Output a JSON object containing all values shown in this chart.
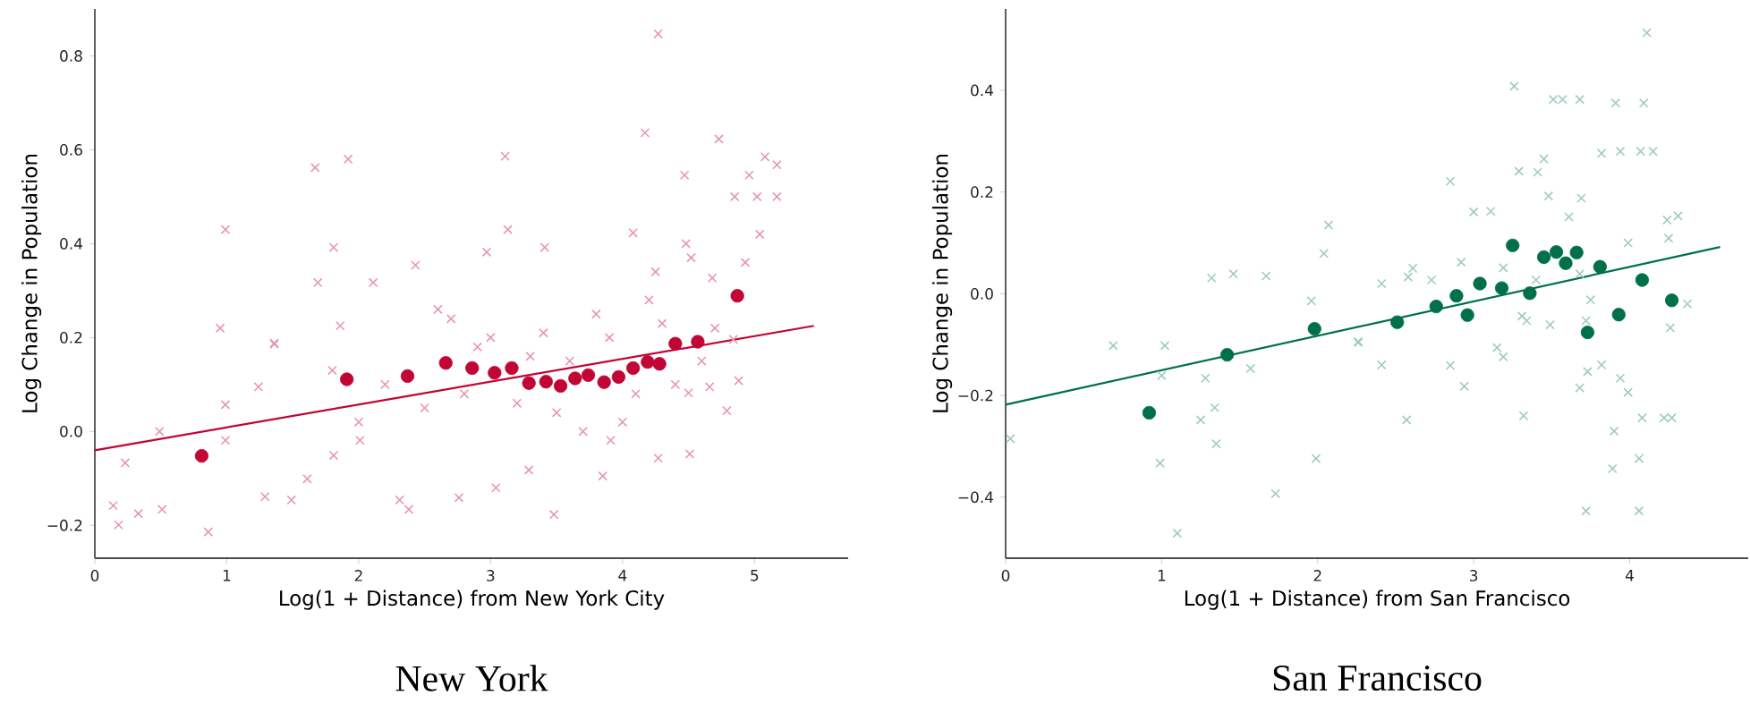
{
  "chart_data": [
    {
      "type": "scatter",
      "title": "New York",
      "xlabel": "Log(1 + Distance) from New York City",
      "ylabel": "Log Change in Population",
      "xlim": [
        0,
        5.71
      ],
      "ylim": [
        -0.27,
        0.9
      ],
      "xticks": [
        0,
        1,
        2,
        3,
        4,
        5
      ],
      "yticks": [
        {
          "value": -0.2,
          "label": "−0.2"
        },
        {
          "value": 0,
          "label": "0.0"
        },
        {
          "value": 0.2,
          "label": "0.2"
        },
        {
          "value": 0.4,
          "label": "0.4"
        },
        {
          "value": 0.6,
          "label": "0.6"
        },
        {
          "value": 0.8,
          "label": "0.8"
        }
      ],
      "series": [
        {
          "marker": "cross",
          "color": "#e897ad",
          "x": [
            4.27,
            4.17,
            1.67,
            1.92,
            3.11,
            4.73,
            4.47,
            5.08,
            5.17,
            4.85,
            5.17,
            5.02,
            4.96,
            0.99,
            1.81,
            3.13,
            3.41,
            4.08,
            4.48,
            5.04,
            4.93,
            1.69,
            2.11,
            4.25,
            4.68,
            0.95,
            1.36,
            1.86,
            2.43,
            2.97,
            4.52,
            0.14,
            0.18,
            0.33,
            0.23,
            0.49,
            0.51,
            0.86,
            0.99,
            0.99,
            1.36,
            1.24,
            1.29,
            1.49,
            1.61,
            1.81,
            2.01,
            2.31,
            2.38,
            2.76,
            3.04,
            3.29,
            3.48,
            3.85,
            3.91,
            4.27,
            4.51,
            4.79,
            4.88,
            4.66,
            4.84,
            4.5,
            2.7,
            2.9,
            3.2,
            3.5,
            3.8,
            4.0,
            4.3,
            4.6,
            2.2,
            2.5,
            3.0,
            3.6,
            4.1,
            4.4,
            3.3,
            2.8,
            3.9,
            4.7,
            1.8,
            2.0,
            3.4,
            4.2,
            3.7,
            2.6
          ],
          "values": [
            0.847,
            0.636,
            0.562,
            0.58,
            0.586,
            0.623,
            0.546,
            0.585,
            0.568,
            0.5,
            0.5,
            0.5,
            0.546,
            0.43,
            0.392,
            0.43,
            0.392,
            0.423,
            0.4,
            0.42,
            0.36,
            0.317,
            0.317,
            0.34,
            0.327,
            0.22,
            0.188,
            0.225,
            0.354,
            0.382,
            0.37,
            -0.158,
            -0.199,
            -0.175,
            -0.067,
            0.0,
            -0.166,
            -0.214,
            -0.019,
            0.057,
            0.186,
            0.095,
            -0.139,
            -0.146,
            -0.101,
            -0.051,
            -0.019,
            -0.146,
            -0.166,
            -0.141,
            -0.12,
            -0.082,
            -0.177,
            -0.095,
            -0.019,
            -0.057,
            -0.048,
            0.044,
            0.108,
            0.095,
            0.196,
            0.082,
            0.24,
            0.18,
            0.06,
            0.04,
            0.25,
            0.02,
            0.23,
            0.15,
            0.1,
            0.05,
            0.2,
            0.15,
            0.08,
            0.1,
            0.16,
            0.08,
            0.2,
            0.22,
            0.13,
            0.02,
            0.21,
            0.28,
            0.0,
            0.26
          ]
        },
        {
          "type": "line",
          "marker": "none",
          "color": "#c10534",
          "x": [
            0,
            5.45
          ],
          "values": [
            -0.04,
            0.225
          ]
        },
        {
          "marker": "circle",
          "color": "#c10534",
          "x": [
            0.81,
            1.91,
            2.37,
            2.66,
            2.86,
            3.03,
            3.16,
            3.29,
            3.42,
            3.53,
            3.64,
            3.74,
            3.86,
            3.97,
            4.08,
            4.19,
            4.28,
            4.4,
            4.57,
            4.87
          ],
          "values": [
            -0.052,
            0.111,
            0.118,
            0.146,
            0.135,
            0.125,
            0.135,
            0.103,
            0.106,
            0.097,
            0.113,
            0.12,
            0.105,
            0.116,
            0.135,
            0.148,
            0.144,
            0.187,
            0.191,
            0.289
          ]
        }
      ]
    },
    {
      "type": "scatter",
      "title": "San Francisco",
      "xlabel": "Log(1 + Distance) from San Francisco",
      "ylabel": "Log Change in Population",
      "xlim": [
        0,
        4.76
      ],
      "ylim": [
        -0.52,
        0.56
      ],
      "xticks": [
        0,
        1,
        2,
        3,
        4
      ],
      "yticks": [
        {
          "value": -0.4,
          "label": "−0.4"
        },
        {
          "value": -0.2,
          "label": "−0.2"
        },
        {
          "value": 0,
          "label": "0.0"
        },
        {
          "value": 0.2,
          "label": "0.2"
        },
        {
          "value": 0.4,
          "label": "0.4"
        }
      ],
      "series": [
        {
          "marker": "cross",
          "color": "#9fcdb9",
          "x": [
            4.11,
            3.26,
            3.51,
            3.57,
            3.68,
            3.91,
            4.09,
            3.82,
            3.94,
            4.07,
            4.15,
            3.29,
            3.45,
            3.41,
            3.48,
            3.69,
            2.85,
            3.0,
            3.11,
            3.61,
            4.24,
            4.31,
            2.07,
            2.04,
            1.32,
            1.46,
            1.67,
            2.41,
            2.58,
            2.61,
            3.99,
            4.25,
            4.37,
            3.75,
            3.31,
            3.49,
            1.96,
            2.26,
            3.19,
            3.4,
            2.73,
            2.92,
            3.68,
            0.03,
            0.69,
            1.02,
            0.99,
            1.1,
            1.0,
            1.25,
            1.34,
            1.35,
            1.28,
            1.57,
            1.73,
            1.99,
            2.26,
            2.41,
            2.57,
            2.85,
            2.94,
            3.32,
            3.68,
            3.73,
            3.72,
            3.82,
            3.89,
            3.94,
            3.9,
            3.99,
            4.06,
            4.06,
            4.22,
            4.27,
            4.08,
            4.26,
            3.15,
            3.19,
            3.34,
            3.72
          ],
          "values": [
            0.513,
            0.408,
            0.382,
            0.382,
            0.382,
            0.375,
            0.375,
            0.276,
            0.28,
            0.28,
            0.28,
            0.241,
            0.265,
            0.239,
            0.192,
            0.188,
            0.221,
            0.161,
            0.162,
            0.151,
            0.145,
            0.153,
            0.135,
            0.079,
            0.031,
            0.039,
            0.035,
            0.02,
            0.033,
            0.05,
            0.1,
            0.109,
            -0.02,
            -0.012,
            -0.044,
            -0.061,
            -0.014,
            -0.096,
            0.051,
            0.027,
            0.027,
            0.062,
            0.039,
            -0.285,
            -0.102,
            -0.102,
            -0.333,
            -0.471,
            -0.161,
            -0.248,
            -0.224,
            -0.295,
            -0.166,
            -0.147,
            -0.393,
            -0.324,
            -0.094,
            -0.14,
            -0.248,
            -0.141,
            -0.182,
            -0.24,
            -0.185,
            -0.153,
            -0.427,
            -0.14,
            -0.344,
            -0.166,
            -0.27,
            -0.194,
            -0.324,
            -0.427,
            -0.244,
            -0.244,
            -0.244,
            -0.067,
            -0.106,
            -0.124,
            -0.053,
            -0.053
          ]
        },
        {
          "type": "line",
          "marker": "none",
          "color": "#00704a",
          "x": [
            0,
            4.58
          ],
          "values": [
            -0.218,
            0.092
          ]
        },
        {
          "marker": "circle",
          "color": "#00704a",
          "x": [
            3.25,
            3.45,
            3.53,
            3.59,
            3.66,
            3.81,
            4.08,
            4.27,
            3.93,
            3.36,
            3.18,
            3.04,
            2.89,
            2.96,
            2.76,
            2.51,
            1.98,
            1.42,
            0.92,
            3.73
          ],
          "values": [
            0.095,
            0.072,
            0.082,
            0.06,
            0.081,
            0.053,
            0.027,
            -0.013,
            -0.041,
            0.001,
            0.011,
            0.02,
            -0.004,
            -0.042,
            -0.025,
            -0.056,
            -0.069,
            -0.12,
            -0.234,
            -0.076
          ]
        }
      ]
    }
  ]
}
